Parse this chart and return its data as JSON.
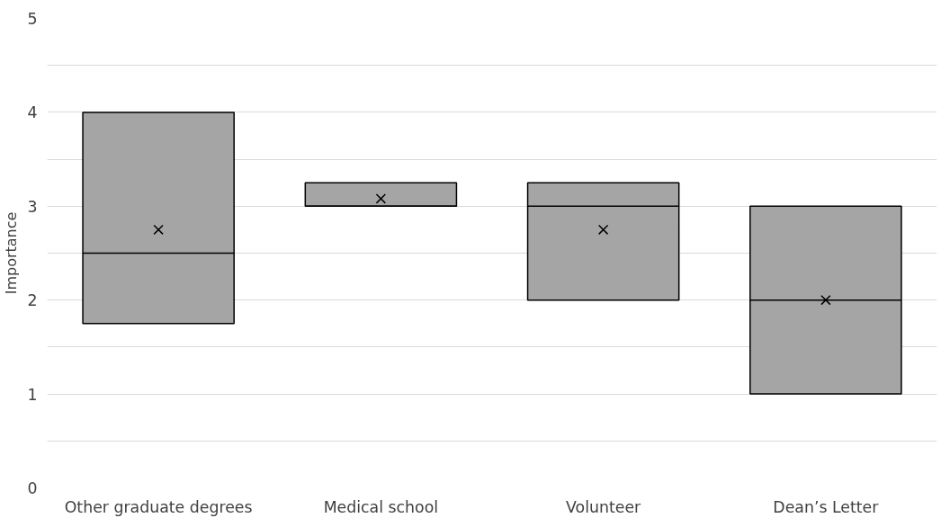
{
  "chart_data": {
    "type": "box",
    "ylabel": "Importance",
    "categories": [
      "Other graduate degrees",
      "Medical school",
      "Volunteer",
      "Dean’s Letter"
    ],
    "boxes": [
      {
        "q1": 1.75,
        "median": 2.5,
        "q3": 4,
        "mean": 2.75
      },
      {
        "q1": 3,
        "median": 3,
        "q3": 3.25,
        "mean": 3.08
      },
      {
        "q1": 2,
        "median": 3,
        "q3": 3.25,
        "mean": 2.75
      },
      {
        "q1": 1,
        "median": 2,
        "q3": 3,
        "mean": 2
      }
    ],
    "color": "#a5a5a5",
    "ylim": [
      0,
      5
    ],
    "yticks": [
      0,
      {
        "value": 0.5,
        "label": null
      },
      1,
      {
        "value": 1.5,
        "label": null
      },
      2,
      {
        "value": 2.5,
        "label": null
      },
      3,
      {
        "value": 3.5,
        "label": null
      },
      4,
      {
        "value": 4.5,
        "label": null
      },
      5
    ],
    "grid": "y",
    "marker": "cross"
  }
}
